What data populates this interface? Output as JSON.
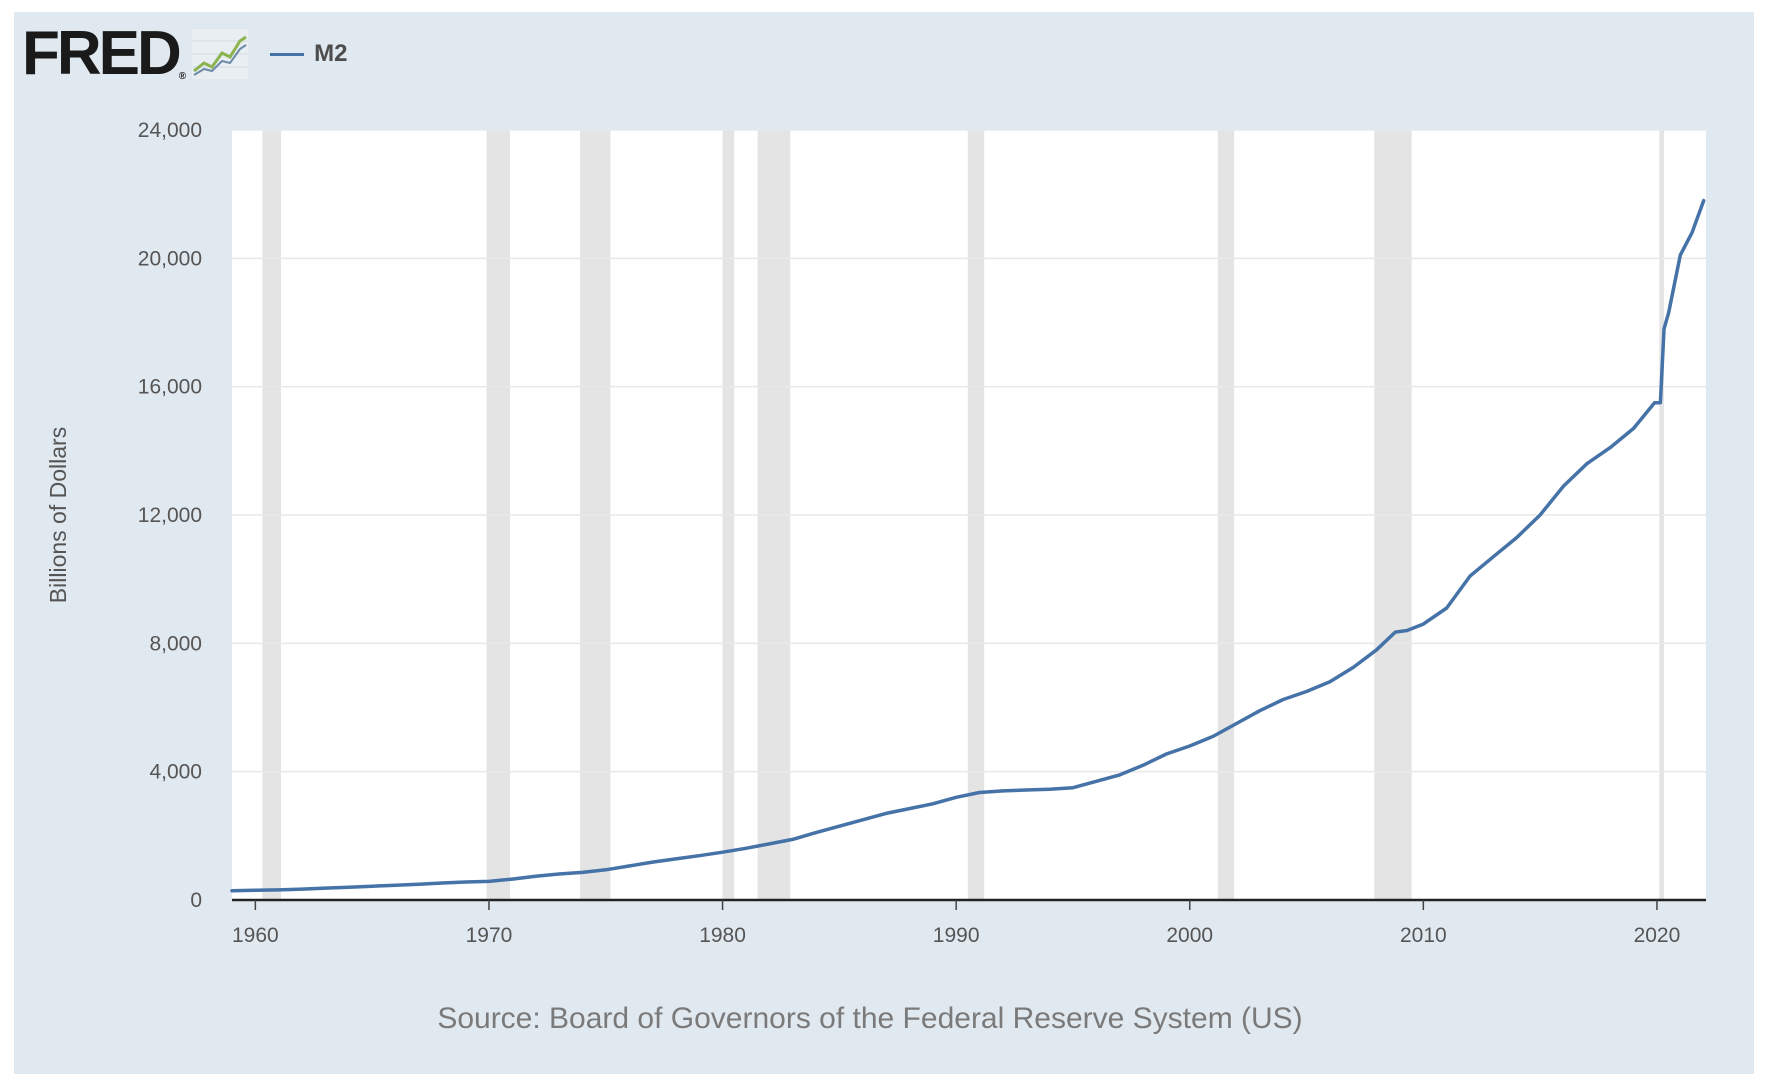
{
  "header": {
    "logo_text": "FRED",
    "logo_registered": "®"
  },
  "colors": {
    "series": "#4572a7",
    "background": "#e1e9f0",
    "recession": "#e4e4e4",
    "grid": "#e8e8e8"
  },
  "chart_data": {
    "type": "line",
    "title": "",
    "xlabel": "",
    "ylabel": "Billions of Dollars",
    "source": "Source: Board of Governors of the Federal Reserve System (US)",
    "legend": {
      "position": "top-left",
      "entries": [
        "M2"
      ]
    },
    "xlim": [
      1959.0,
      2022.1
    ],
    "ylim": [
      0,
      24000
    ],
    "yticks": [
      0,
      4000,
      8000,
      12000,
      16000,
      20000,
      24000
    ],
    "ytick_labels": [
      "0",
      "4,000",
      "8,000",
      "12,000",
      "16,000",
      "20,000",
      "24,000"
    ],
    "xticks": [
      1960,
      1970,
      1980,
      1990,
      2000,
      2010,
      2020
    ],
    "xtick_labels": [
      "1960",
      "1970",
      "1980",
      "1990",
      "2000",
      "2010",
      "2020"
    ],
    "grid": true,
    "recessions": [
      [
        1960.3,
        1961.1
      ],
      [
        1969.9,
        1970.9
      ],
      [
        1973.9,
        1975.2
      ],
      [
        1980.0,
        1980.5
      ],
      [
        1981.5,
        1982.9
      ],
      [
        1990.5,
        1991.2
      ],
      [
        2001.2,
        2001.9
      ],
      [
        2007.9,
        2009.5
      ],
      [
        2020.1,
        2020.3
      ]
    ],
    "series": [
      {
        "name": "M2",
        "x": [
          1959.0,
          1960,
          1961,
          1962,
          1963,
          1964,
          1965,
          1966,
          1967,
          1968,
          1969,
          1970,
          1971,
          1972,
          1973,
          1974,
          1975,
          1976,
          1977,
          1978,
          1979,
          1980,
          1981,
          1982,
          1983,
          1984,
          1985,
          1986,
          1987,
          1988,
          1989,
          1990,
          1991,
          1992,
          1993,
          1994,
          1995,
          1996,
          1997,
          1998,
          1999,
          2000,
          2001,
          2002,
          2003,
          2004,
          2005,
          2006,
          2007,
          2008,
          2008.8,
          2009.3,
          2010,
          2011,
          2012,
          2013,
          2014,
          2015,
          2016,
          2017,
          2018,
          2019,
          2019.9,
          2020.15,
          2020.3,
          2020.5,
          2021,
          2021.5,
          2022.0
        ],
        "values": [
          290,
          305,
          315,
          340,
          370,
          400,
          430,
          460,
          490,
          530,
          560,
          580,
          650,
          740,
          810,
          860,
          940,
          1060,
          1180,
          1280,
          1380,
          1490,
          1610,
          1750,
          1890,
          2100,
          2300,
          2500,
          2700,
          2850,
          3000,
          3200,
          3350,
          3400,
          3430,
          3450,
          3500,
          3700,
          3900,
          4200,
          4550,
          4800,
          5100,
          5500,
          5900,
          6250,
          6500,
          6800,
          7250,
          7800,
          8350,
          8400,
          8600,
          9100,
          10100,
          10700,
          11300,
          12000,
          12900,
          13600,
          14100,
          14700,
          15500,
          15500,
          17800,
          18300,
          20100,
          20800,
          21800
        ]
      }
    ]
  }
}
